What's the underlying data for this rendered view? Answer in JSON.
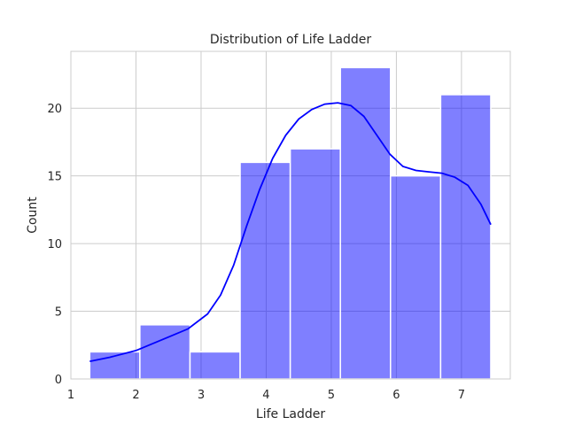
{
  "chart_data": {
    "type": "bar",
    "subtype": "histogram-with-kde",
    "title": "Distribution of Life Ladder",
    "xlabel": "Life Ladder",
    "ylabel": "Count",
    "xlim": [
      1.0,
      7.75
    ],
    "ylim": [
      0,
      24.2
    ],
    "xticks": [
      1,
      2,
      3,
      4,
      5,
      6,
      7
    ],
    "yticks": [
      0,
      5,
      10,
      15,
      20
    ],
    "grid": true,
    "legend": "none",
    "bar_color": "#0000ff",
    "bar_opacity": 0.5,
    "line_color": "#0000ff",
    "bins": [
      {
        "x0": 1.29,
        "x1": 2.06,
        "count": 2
      },
      {
        "x0": 2.06,
        "x1": 2.83,
        "count": 4
      },
      {
        "x0": 2.83,
        "x1": 3.6,
        "count": 2
      },
      {
        "x0": 3.6,
        "x1": 4.37,
        "count": 16
      },
      {
        "x0": 4.37,
        "x1": 5.14,
        "count": 17
      },
      {
        "x0": 5.14,
        "x1": 5.91,
        "count": 23
      },
      {
        "x0": 5.91,
        "x1": 6.68,
        "count": 15
      },
      {
        "x0": 6.68,
        "x1": 7.45,
        "count": 21
      }
    ],
    "kde": {
      "x": [
        1.29,
        1.6,
        2.0,
        2.4,
        2.8,
        3.1,
        3.3,
        3.5,
        3.7,
        3.9,
        4.1,
        4.3,
        4.5,
        4.7,
        4.9,
        5.1,
        5.3,
        5.5,
        5.7,
        5.9,
        6.1,
        6.3,
        6.5,
        6.7,
        6.9,
        7.1,
        7.3,
        7.45
      ],
      "y": [
        1.3,
        1.6,
        2.1,
        2.9,
        3.7,
        4.8,
        6.2,
        8.4,
        11.3,
        14.0,
        16.3,
        18.0,
        19.2,
        19.9,
        20.3,
        20.4,
        20.2,
        19.4,
        18.0,
        16.6,
        15.7,
        15.4,
        15.3,
        15.2,
        14.9,
        14.3,
        12.9,
        11.4
      ]
    }
  }
}
